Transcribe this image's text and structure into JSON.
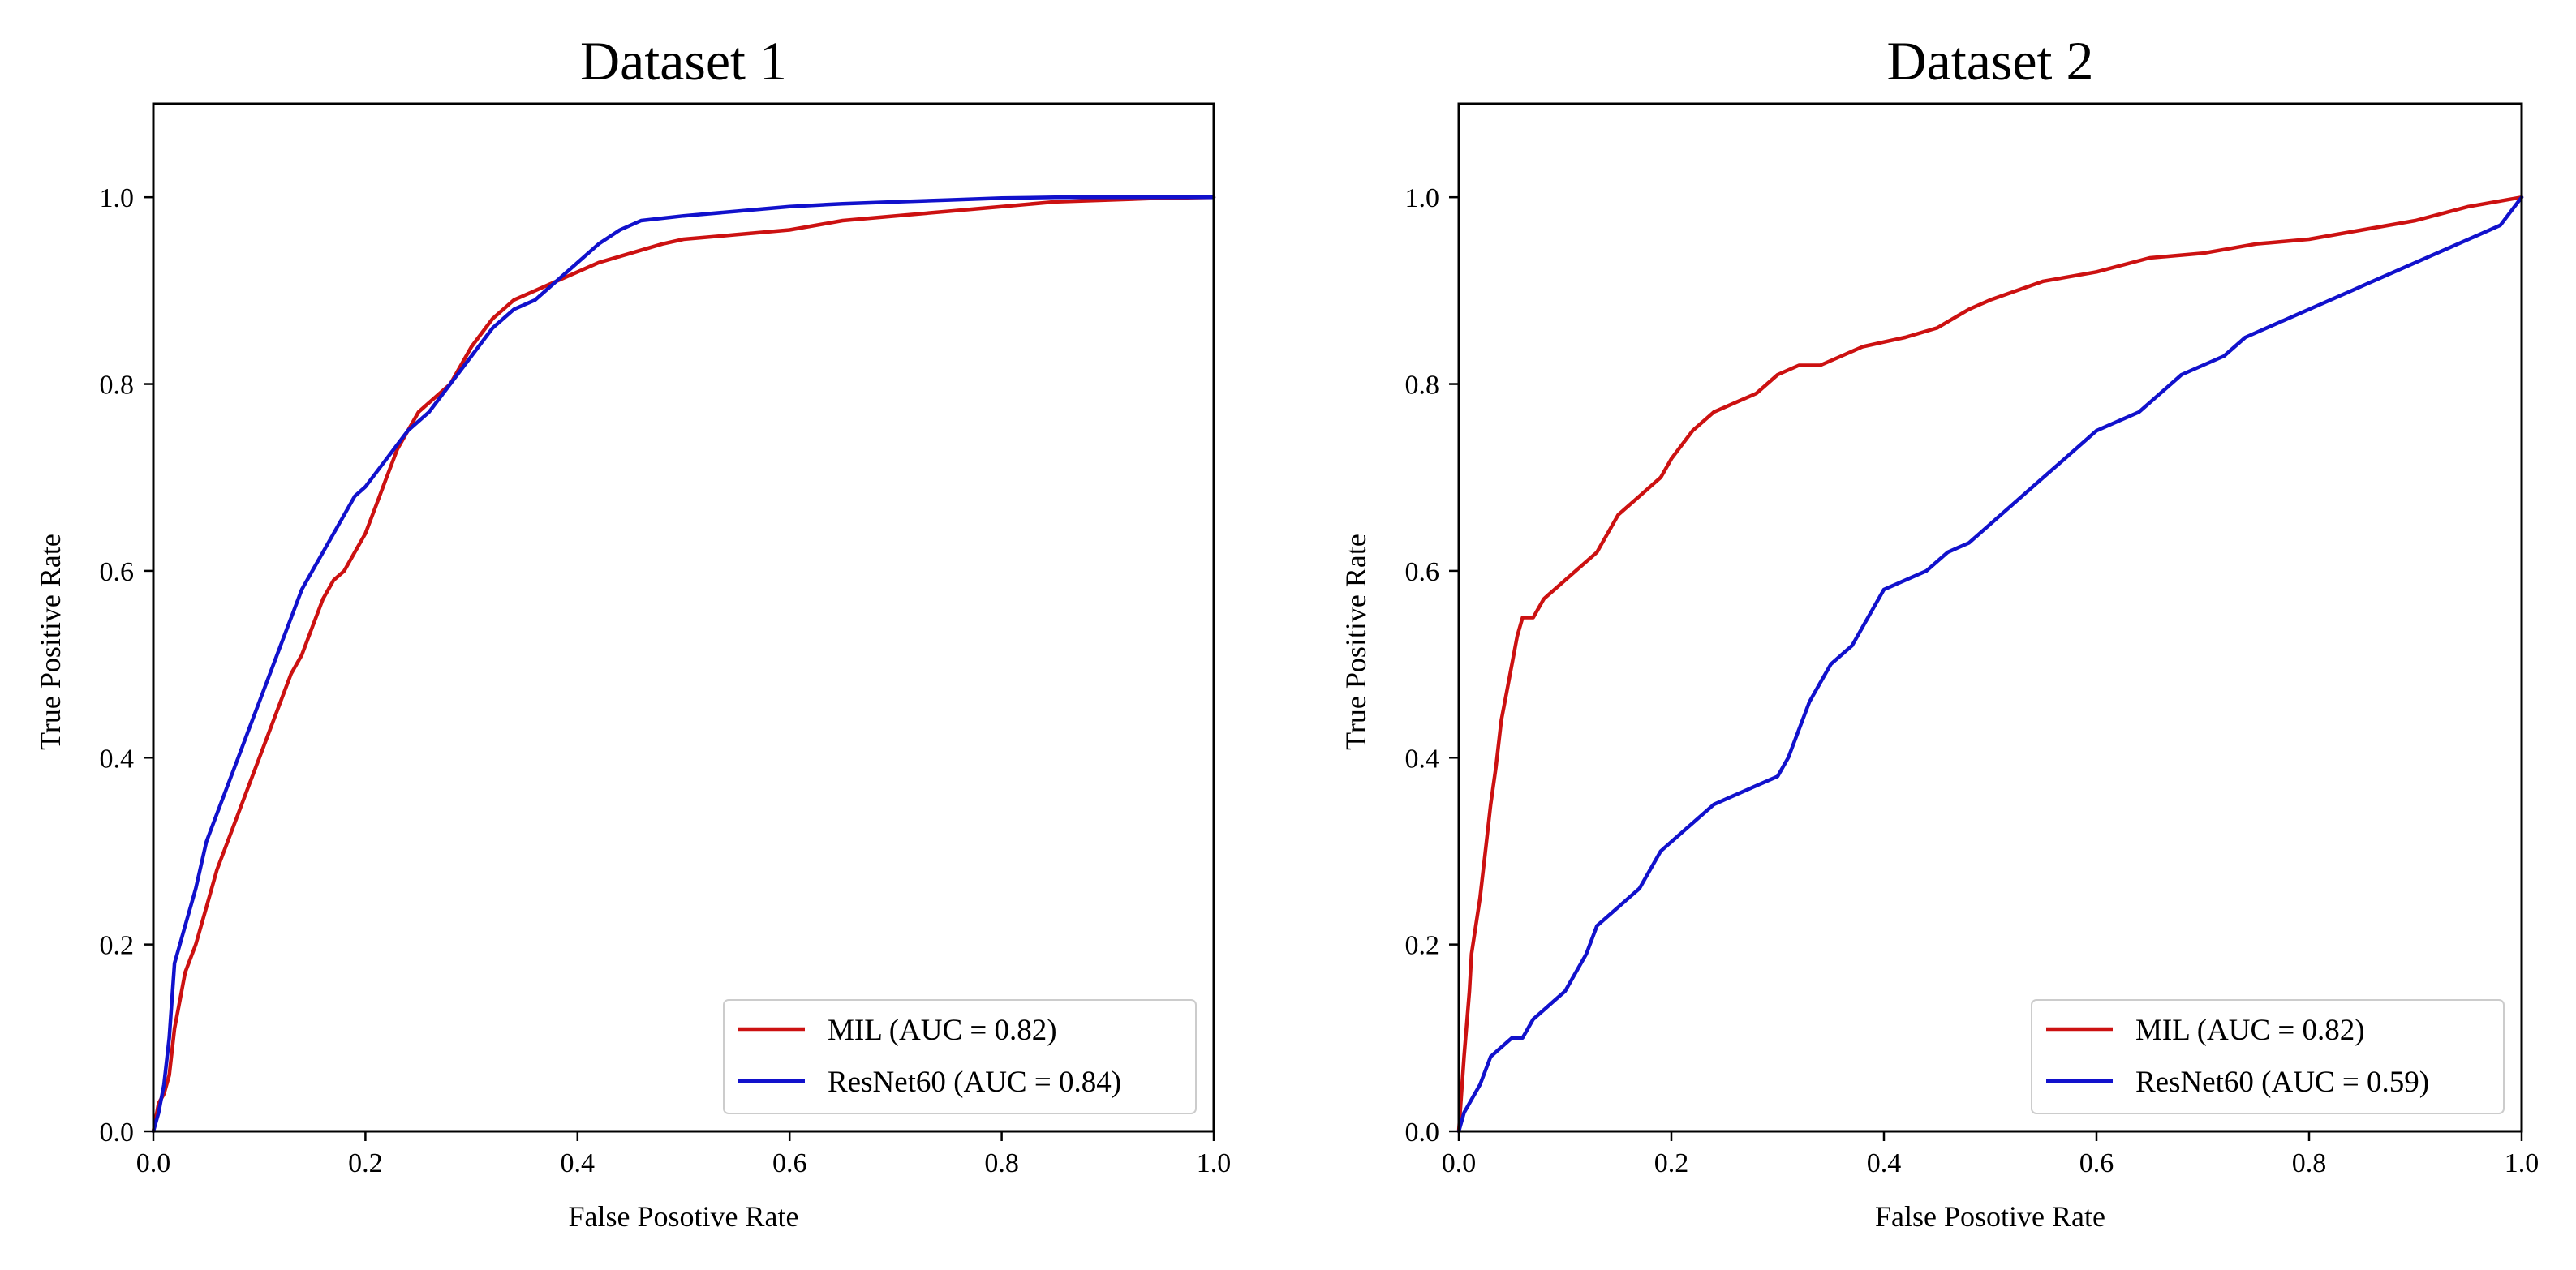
{
  "chart_data": [
    {
      "type": "line",
      "title": "Dataset 1",
      "xlabel": "False Posotive Rate",
      "ylabel": "True Positive Rate",
      "xlim": [
        0.0,
        1.0
      ],
      "ylim": [
        0.0,
        1.1
      ],
      "xticks": [
        0.0,
        0.2,
        0.4,
        0.6,
        0.8,
        1.0
      ],
      "yticks": [
        0.0,
        0.2,
        0.4,
        0.6,
        0.8,
        1.0
      ],
      "tick_labels": [
        "0.0",
        "0.2",
        "0.4",
        "0.6",
        "0.8",
        "1.0"
      ],
      "legend_position": "lower-right",
      "series": [
        {
          "name": "MIL (AUC = 0.82)",
          "color": "#cc1111",
          "x": [
            0.0,
            0.005,
            0.01,
            0.015,
            0.02,
            0.025,
            0.03,
            0.04,
            0.05,
            0.06,
            0.07,
            0.08,
            0.09,
            0.1,
            0.11,
            0.12,
            0.13,
            0.14,
            0.15,
            0.16,
            0.17,
            0.18,
            0.19,
            0.2,
            0.21,
            0.22,
            0.23,
            0.24,
            0.25,
            0.26,
            0.27,
            0.28,
            0.3,
            0.32,
            0.34,
            0.36,
            0.38,
            0.4,
            0.42,
            0.45,
            0.48,
            0.5,
            0.55,
            0.6,
            0.65,
            0.7,
            0.75,
            0.8,
            0.85,
            0.9,
            0.95,
            1.0
          ],
          "y": [
            0.0,
            0.03,
            0.04,
            0.06,
            0.11,
            0.14,
            0.17,
            0.2,
            0.24,
            0.28,
            0.31,
            0.34,
            0.37,
            0.4,
            0.43,
            0.46,
            0.49,
            0.51,
            0.54,
            0.57,
            0.59,
            0.6,
            0.62,
            0.64,
            0.67,
            0.7,
            0.73,
            0.75,
            0.77,
            0.78,
            0.79,
            0.8,
            0.84,
            0.87,
            0.89,
            0.9,
            0.91,
            0.92,
            0.93,
            0.94,
            0.95,
            0.955,
            0.96,
            0.965,
            0.975,
            0.98,
            0.985,
            0.99,
            0.995,
            0.997,
            0.999,
            1.0
          ]
        },
        {
          "name": "ResNet60 (AUC = 0.84)",
          "color": "#1111cc",
          "x": [
            0.0,
            0.005,
            0.01,
            0.015,
            0.02,
            0.025,
            0.03,
            0.04,
            0.05,
            0.06,
            0.07,
            0.08,
            0.09,
            0.1,
            0.11,
            0.12,
            0.13,
            0.14,
            0.15,
            0.16,
            0.17,
            0.18,
            0.19,
            0.2,
            0.22,
            0.24,
            0.26,
            0.28,
            0.3,
            0.32,
            0.34,
            0.36,
            0.38,
            0.4,
            0.42,
            0.44,
            0.46,
            0.5,
            0.55,
            0.6,
            0.65,
            0.7,
            0.75,
            0.8,
            0.85,
            0.9,
            1.0
          ],
          "y": [
            0.0,
            0.02,
            0.05,
            0.1,
            0.18,
            0.2,
            0.22,
            0.26,
            0.31,
            0.34,
            0.37,
            0.4,
            0.43,
            0.46,
            0.49,
            0.52,
            0.55,
            0.58,
            0.6,
            0.62,
            0.64,
            0.66,
            0.68,
            0.69,
            0.72,
            0.75,
            0.77,
            0.8,
            0.83,
            0.86,
            0.88,
            0.89,
            0.91,
            0.93,
            0.95,
            0.965,
            0.975,
            0.98,
            0.985,
            0.99,
            0.993,
            0.995,
            0.997,
            0.999,
            1.0,
            1.0,
            1.0
          ]
        }
      ]
    },
    {
      "type": "line",
      "title": "Dataset 2",
      "xlabel": "False Posotive Rate",
      "ylabel": "True Positive Rate",
      "xlim": [
        0.0,
        1.0
      ],
      "ylim": [
        0.0,
        1.1
      ],
      "xticks": [
        0.0,
        0.2,
        0.4,
        0.6,
        0.8,
        1.0
      ],
      "yticks": [
        0.0,
        0.2,
        0.4,
        0.6,
        0.8,
        1.0
      ],
      "tick_labels": [
        "0.0",
        "0.2",
        "0.4",
        "0.6",
        "0.8",
        "1.0"
      ],
      "legend_position": "lower-right",
      "series": [
        {
          "name": "MIL (AUC = 0.82)",
          "color": "#cc1111",
          "x": [
            0.0,
            0.005,
            0.01,
            0.012,
            0.02,
            0.025,
            0.03,
            0.035,
            0.04,
            0.045,
            0.05,
            0.055,
            0.06,
            0.065,
            0.07,
            0.08,
            0.09,
            0.1,
            0.11,
            0.12,
            0.13,
            0.14,
            0.15,
            0.16,
            0.17,
            0.18,
            0.19,
            0.2,
            0.22,
            0.24,
            0.26,
            0.28,
            0.3,
            0.32,
            0.34,
            0.36,
            0.38,
            0.4,
            0.42,
            0.45,
            0.48,
            0.5,
            0.55,
            0.6,
            0.65,
            0.7,
            0.75,
            0.8,
            0.85,
            0.9,
            0.95,
            1.0
          ],
          "y": [
            0.0,
            0.08,
            0.15,
            0.19,
            0.25,
            0.3,
            0.35,
            0.39,
            0.44,
            0.47,
            0.5,
            0.53,
            0.55,
            0.55,
            0.55,
            0.57,
            0.58,
            0.59,
            0.6,
            0.61,
            0.62,
            0.64,
            0.66,
            0.67,
            0.68,
            0.69,
            0.7,
            0.72,
            0.75,
            0.77,
            0.78,
            0.79,
            0.81,
            0.82,
            0.82,
            0.83,
            0.84,
            0.845,
            0.85,
            0.86,
            0.88,
            0.89,
            0.91,
            0.92,
            0.935,
            0.94,
            0.95,
            0.955,
            0.965,
            0.975,
            0.99,
            1.0
          ]
        },
        {
          "name": "ResNet60 (AUC = 0.59)",
          "color": "#1111cc",
          "x": [
            0.0,
            0.005,
            0.01,
            0.02,
            0.03,
            0.04,
            0.05,
            0.06,
            0.07,
            0.08,
            0.09,
            0.1,
            0.11,
            0.12,
            0.13,
            0.14,
            0.15,
            0.16,
            0.17,
            0.18,
            0.19,
            0.2,
            0.22,
            0.24,
            0.26,
            0.28,
            0.3,
            0.31,
            0.32,
            0.33,
            0.34,
            0.35,
            0.36,
            0.37,
            0.38,
            0.39,
            0.4,
            0.42,
            0.44,
            0.46,
            0.48,
            0.5,
            0.52,
            0.54,
            0.56,
            0.58,
            0.6,
            0.62,
            0.64,
            0.66,
            0.68,
            0.7,
            0.72,
            0.74,
            0.76,
            0.78,
            0.8,
            0.82,
            0.84,
            0.86,
            0.88,
            0.9,
            0.92,
            0.94,
            0.96,
            0.98,
            1.0
          ],
          "y": [
            0.0,
            0.02,
            0.03,
            0.05,
            0.08,
            0.09,
            0.1,
            0.1,
            0.12,
            0.13,
            0.14,
            0.15,
            0.17,
            0.19,
            0.22,
            0.23,
            0.24,
            0.25,
            0.26,
            0.28,
            0.3,
            0.31,
            0.33,
            0.35,
            0.36,
            0.37,
            0.38,
            0.4,
            0.43,
            0.46,
            0.48,
            0.5,
            0.51,
            0.52,
            0.54,
            0.56,
            0.58,
            0.59,
            0.6,
            0.62,
            0.63,
            0.65,
            0.67,
            0.69,
            0.71,
            0.73,
            0.75,
            0.76,
            0.77,
            0.79,
            0.81,
            0.82,
            0.83,
            0.85,
            0.86,
            0.87,
            0.88,
            0.89,
            0.9,
            0.91,
            0.92,
            0.93,
            0.94,
            0.95,
            0.96,
            0.97,
            1.0
          ]
        }
      ]
    }
  ]
}
